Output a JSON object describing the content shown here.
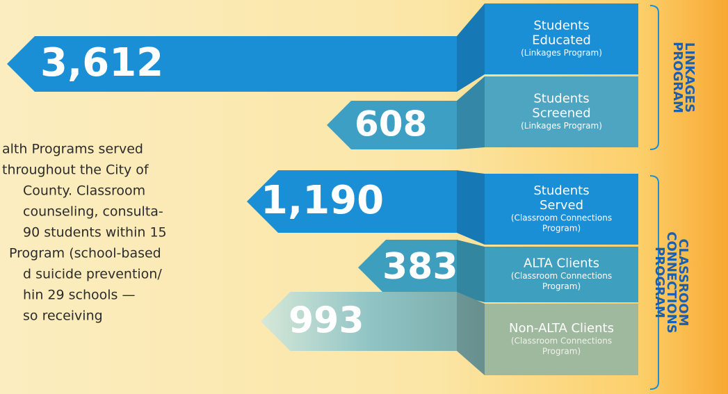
{
  "paragraph": [
    "alth Programs served",
    "throughout the City of",
    "County. Classroom",
    "counseling, consulta-",
    "90 students within 15",
    "Program (school-based",
    "d suicide prevention/",
    "hin 29 schools —",
    "so receiving"
  ],
  "groups": [
    {
      "title": [
        "LINKAGES",
        "PROGRAM"
      ],
      "items": [
        {
          "value": "3,612",
          "label": [
            "Students",
            "Educated"
          ],
          "sublabel": [
            "(Linkages Program)"
          ]
        },
        {
          "value": "608",
          "label": [
            "Students",
            "Screened"
          ],
          "sublabel": [
            "(Linkages Program)"
          ]
        }
      ]
    },
    {
      "title": [
        "CLASSROOM",
        "CONNECTIONS",
        "PROGRAM"
      ],
      "items": [
        {
          "value": "1,190",
          "label": [
            "Students",
            "Served"
          ],
          "sublabel": [
            "(Classroom Connections",
            "Program)"
          ]
        },
        {
          "value": "383",
          "label": [
            "ALTA Clients"
          ],
          "sublabel": [
            "(Classroom Connections",
            "Program)"
          ]
        },
        {
          "value": "993",
          "label": [
            "Non-ALTA Clients"
          ],
          "sublabel": [
            "(Classroom Connections",
            "Program)"
          ]
        }
      ]
    }
  ]
}
